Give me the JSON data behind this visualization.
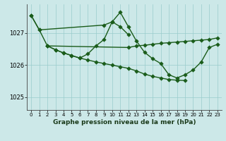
{
  "title": "Graphe pression niveau de la mer (hPa)",
  "bg_color": "#cce8e8",
  "grid_color": "#99cccc",
  "line_color": "#1a5c1a",
  "xlim": [
    -0.5,
    23.5
  ],
  "ylim": [
    1024.6,
    1027.9
  ],
  "yticks": [
    1025,
    1026,
    1027
  ],
  "xticks": [
    0,
    1,
    2,
    3,
    4,
    5,
    6,
    7,
    8,
    9,
    10,
    11,
    12,
    13,
    14,
    15,
    16,
    17,
    18,
    19,
    20,
    21,
    22,
    23
  ],
  "series": [
    {
      "x": [
        0,
        1,
        9,
        10,
        11,
        12,
        13,
        14,
        15,
        16,
        17,
        18,
        19,
        20,
        21,
        22,
        23
      ],
      "y": [
        1027.55,
        1027.1,
        1027.25,
        1027.35,
        1027.65,
        1027.2,
        1026.75,
        1026.4,
        1026.2,
        1026.05,
        1025.7,
        1025.6,
        1025.7,
        1025.85,
        1026.1,
        1026.55,
        1026.65
      ]
    },
    {
      "x": [
        0,
        1,
        2,
        12,
        13,
        14,
        15,
        16,
        17,
        18,
        19,
        20,
        21,
        22,
        23
      ],
      "y": [
        1027.55,
        1027.1,
        1026.6,
        1026.55,
        1026.6,
        1026.62,
        1026.65,
        1026.68,
        1026.7,
        1026.72,
        1026.74,
        1026.76,
        1026.78,
        1026.8,
        1026.85
      ]
    },
    {
      "x": [
        2,
        3,
        4,
        5,
        6,
        7,
        8,
        9,
        10,
        11,
        12,
        13,
        14,
        15,
        16,
        17,
        18,
        19
      ],
      "y": [
        1026.6,
        1026.48,
        1026.38,
        1026.3,
        1026.22,
        1026.16,
        1026.1,
        1026.05,
        1026.0,
        1025.95,
        1025.9,
        1025.82,
        1025.72,
        1025.65,
        1025.6,
        1025.55,
        1025.53,
        1025.52
      ]
    },
    {
      "x": [
        2,
        3,
        4,
        5,
        6,
        7,
        8,
        9,
        10,
        11,
        12
      ],
      "y": [
        1026.6,
        1026.48,
        1026.38,
        1026.3,
        1026.22,
        1026.35,
        1026.6,
        1026.8,
        1027.35,
        1027.2,
        1026.95
      ]
    }
  ]
}
